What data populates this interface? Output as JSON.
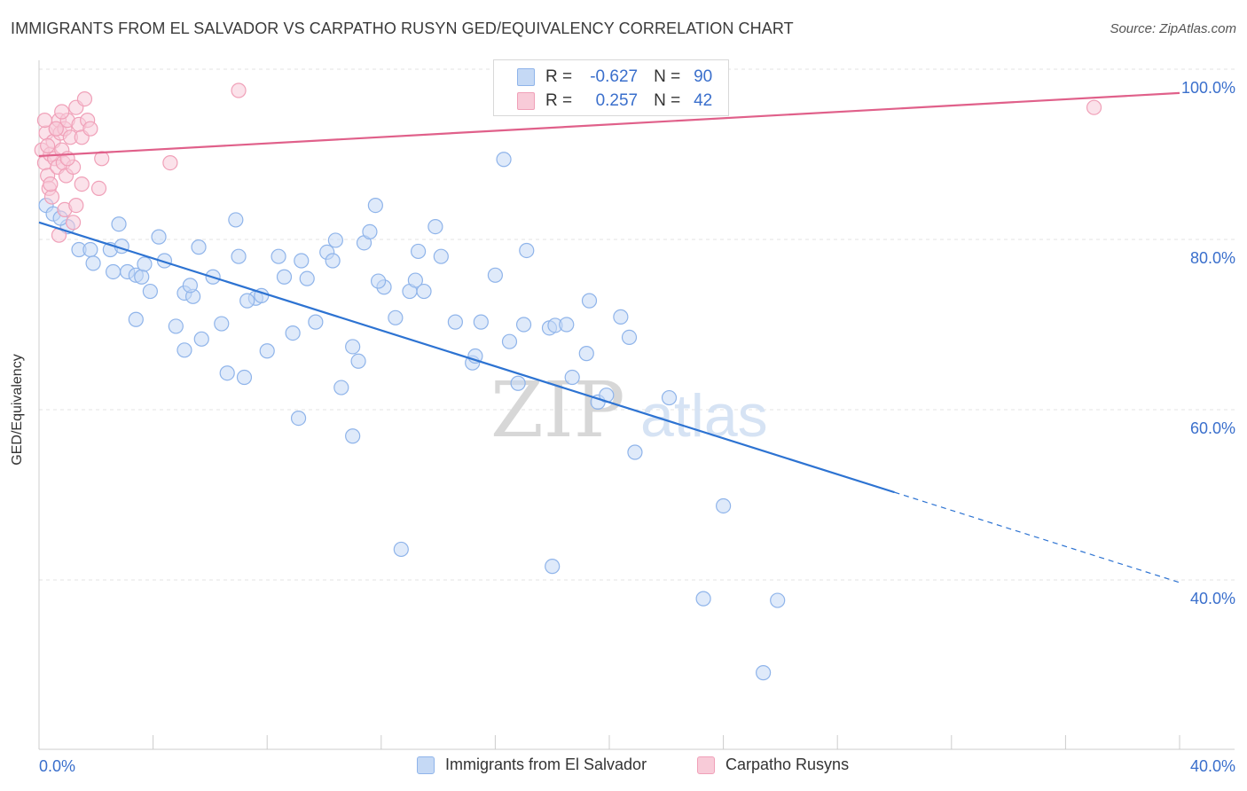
{
  "header": {
    "title": "IMMIGRANTS FROM EL SALVADOR VS CARPATHO RUSYN GED/EQUIVALENCY CORRELATION CHART",
    "source": "Source: ZipAtlas.com"
  },
  "legend": {
    "rows": [
      {
        "r_label": "R =",
        "r_value": "-0.627",
        "n_label": "N =",
        "n_value": "90"
      },
      {
        "r_label": "R =",
        "r_value": "0.257",
        "n_label": "N =",
        "n_value": "42"
      }
    ]
  },
  "watermark": {
    "part1": "ZIP",
    "part2": "atlas"
  },
  "chart_data": {
    "type": "scatter",
    "title": "IMMIGRANTS FROM EL SALVADOR VS CARPATHO RUSYN GED/EQUIVALENCY CORRELATION CHART",
    "xlabel": "",
    "ylabel": "GED/Equivalency",
    "xlim": [
      0,
      40
    ],
    "ylim": [
      22,
      102
    ],
    "x_ticks": [
      0,
      40
    ],
    "x_tick_labels": [
      "0.0%",
      "40.0%"
    ],
    "y_ticks": [
      40,
      60,
      80,
      100
    ],
    "y_tick_labels": [
      "40.0%",
      "60.0%",
      "80.0%",
      "100.0%"
    ],
    "grid": true,
    "legend_position": "bottom",
    "series": [
      {
        "name": "Immigrants from El Salvador",
        "color": "#8fb4ea",
        "fill": "#c5d9f5",
        "line_color": "#2d73d2",
        "trend": {
          "x0": 0,
          "y0": 82.0,
          "x1": 30.0,
          "y1": 50.3,
          "dash_to_x": 40,
          "dash_to_y": 39.7
        },
        "points": [
          [
            0.25,
            84.0
          ],
          [
            0.5,
            83.0
          ],
          [
            1.0,
            81.5
          ],
          [
            0.75,
            82.5
          ],
          [
            1.4,
            78.8
          ],
          [
            1.8,
            78.8
          ],
          [
            2.5,
            78.8
          ],
          [
            2.9,
            79.2
          ],
          [
            1.9,
            77.2
          ],
          [
            2.6,
            76.2
          ],
          [
            3.1,
            76.2
          ],
          [
            3.4,
            75.8
          ],
          [
            3.6,
            75.6
          ],
          [
            3.9,
            73.9
          ],
          [
            3.7,
            77.1
          ],
          [
            4.4,
            77.5
          ],
          [
            4.2,
            80.3
          ],
          [
            2.8,
            81.8
          ],
          [
            3.4,
            70.6
          ],
          [
            4.8,
            69.8
          ],
          [
            5.1,
            73.7
          ],
          [
            5.4,
            73.3
          ],
          [
            5.3,
            74.6
          ],
          [
            5.6,
            79.1
          ],
          [
            6.1,
            75.6
          ],
          [
            6.4,
            70.1
          ],
          [
            5.7,
            68.3
          ],
          [
            5.1,
            67.0
          ],
          [
            6.6,
            64.3
          ],
          [
            6.9,
            82.3
          ],
          [
            7.0,
            78.0
          ],
          [
            7.6,
            73.1
          ],
          [
            7.3,
            72.8
          ],
          [
            7.8,
            73.4
          ],
          [
            7.2,
            63.8
          ],
          [
            8.0,
            66.9
          ],
          [
            8.4,
            78.0
          ],
          [
            8.6,
            75.6
          ],
          [
            8.9,
            69.0
          ],
          [
            9.2,
            77.5
          ],
          [
            9.4,
            75.4
          ],
          [
            9.7,
            70.3
          ],
          [
            10.1,
            78.5
          ],
          [
            10.3,
            77.5
          ],
          [
            10.4,
            79.9
          ],
          [
            9.1,
            59.0
          ],
          [
            11.0,
            67.4
          ],
          [
            10.6,
            62.6
          ],
          [
            11.4,
            79.6
          ],
          [
            11.6,
            80.9
          ],
          [
            11.8,
            84.0
          ],
          [
            12.1,
            74.4
          ],
          [
            11.9,
            75.1
          ],
          [
            11.2,
            65.7
          ],
          [
            12.5,
            70.8
          ],
          [
            13.0,
            73.9
          ],
          [
            13.2,
            75.2
          ],
          [
            13.5,
            73.9
          ],
          [
            13.3,
            78.6
          ],
          [
            13.9,
            81.5
          ],
          [
            14.1,
            78.0
          ],
          [
            14.6,
            70.3
          ],
          [
            15.2,
            65.5
          ],
          [
            15.3,
            66.3
          ],
          [
            15.5,
            70.3
          ],
          [
            16.0,
            75.8
          ],
          [
            16.3,
            89.4
          ],
          [
            16.5,
            68.0
          ],
          [
            16.8,
            63.1
          ],
          [
            17.0,
            70.0
          ],
          [
            17.1,
            78.7
          ],
          [
            17.9,
            69.6
          ],
          [
            18.1,
            69.9
          ],
          [
            18.7,
            63.8
          ],
          [
            19.2,
            66.6
          ],
          [
            19.3,
            72.8
          ],
          [
            19.6,
            60.9
          ],
          [
            19.9,
            61.7
          ],
          [
            20.4,
            70.9
          ],
          [
            20.7,
            68.5
          ],
          [
            20.9,
            55.0
          ],
          [
            11.0,
            56.9
          ],
          [
            12.7,
            43.6
          ],
          [
            18.0,
            41.6
          ],
          [
            24.0,
            48.7
          ],
          [
            23.3,
            37.8
          ],
          [
            25.9,
            37.6
          ],
          [
            25.4,
            29.1
          ],
          [
            18.5,
            70.0
          ],
          [
            22.1,
            61.4
          ]
        ]
      },
      {
        "name": "Carpatho Rusyns",
        "color": "#f0a0b8",
        "fill": "#f8cbd8",
        "line_color": "#e0608a",
        "trend": {
          "x0": 0,
          "y0": 89.8,
          "x1": 40,
          "y1": 97.2
        },
        "points": [
          [
            0.1,
            90.5
          ],
          [
            0.2,
            89.0
          ],
          [
            0.25,
            92.5
          ],
          [
            0.3,
            87.5
          ],
          [
            0.35,
            86.0
          ],
          [
            0.4,
            90.0
          ],
          [
            0.45,
            85.0
          ],
          [
            0.5,
            91.5
          ],
          [
            0.55,
            89.5
          ],
          [
            0.6,
            93.0
          ],
          [
            0.65,
            88.5
          ],
          [
            0.7,
            94.0
          ],
          [
            0.75,
            92.5
          ],
          [
            0.8,
            90.5
          ],
          [
            0.85,
            89.0
          ],
          [
            0.9,
            93.0
          ],
          [
            0.95,
            87.5
          ],
          [
            1.0,
            94.0
          ],
          [
            1.1,
            92.0
          ],
          [
            1.2,
            88.5
          ],
          [
            1.3,
            95.5
          ],
          [
            1.4,
            93.5
          ],
          [
            1.5,
            92.0
          ],
          [
            1.6,
            96.5
          ],
          [
            1.7,
            94.0
          ],
          [
            1.5,
            86.5
          ],
          [
            0.9,
            83.5
          ],
          [
            1.2,
            82.0
          ],
          [
            0.7,
            80.5
          ],
          [
            2.2,
            89.5
          ],
          [
            2.1,
            86.0
          ],
          [
            4.6,
            89.0
          ],
          [
            7.0,
            97.5
          ],
          [
            37.0,
            95.5
          ],
          [
            0.3,
            91.0
          ],
          [
            0.6,
            93.0
          ],
          [
            0.8,
            95.0
          ],
          [
            1.0,
            89.5
          ],
          [
            0.4,
            86.5
          ],
          [
            1.3,
            84.0
          ],
          [
            0.2,
            94.0
          ],
          [
            1.8,
            93.0
          ]
        ]
      }
    ]
  },
  "bottom_legend": {
    "items": [
      {
        "label": "Immigrants from El Salvador"
      },
      {
        "label": "Carpatho Rusyns"
      }
    ]
  }
}
